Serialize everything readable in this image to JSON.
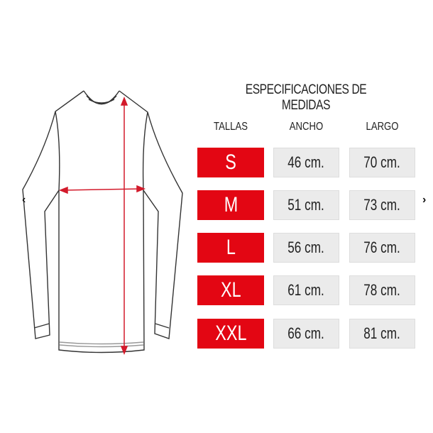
{
  "title": "ESPECIFICACIONES DE MEDIDAS",
  "headers": {
    "size": "TALLAS",
    "width": "ANCHO",
    "length": "LARGO"
  },
  "rows": [
    {
      "size": "S",
      "width": "46 cm.",
      "length": "70 cm."
    },
    {
      "size": "M",
      "width": "51 cm.",
      "length": "73 cm."
    },
    {
      "size": "L",
      "width": "56 cm.",
      "length": "76 cm."
    },
    {
      "size": "XL",
      "width": "61 cm.",
      "length": "78 cm."
    },
    {
      "size": "XXL",
      "width": "66 cm.",
      "length": "81 cm."
    }
  ],
  "nav": {
    "prev": "‹",
    "next": "›"
  },
  "colors": {
    "accent": "#e30613",
    "cell": "#ebebeb"
  }
}
